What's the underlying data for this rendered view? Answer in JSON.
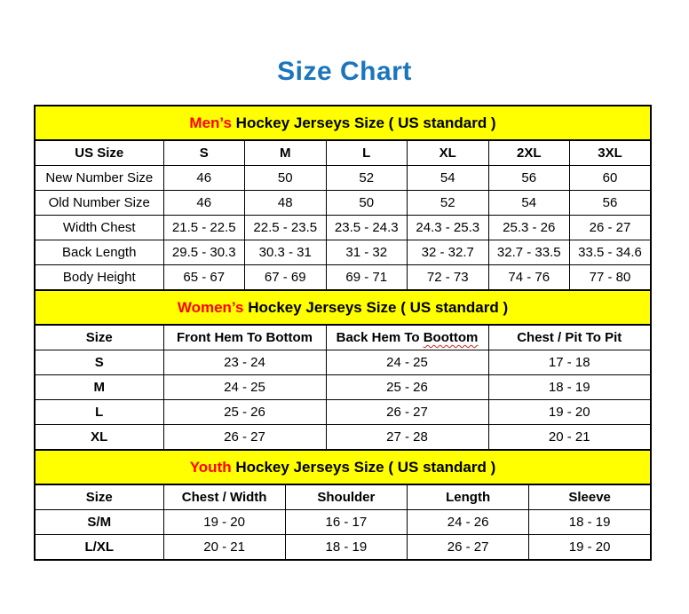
{
  "title": "Size Chart",
  "colors": {
    "title_blue": "#1B75BC",
    "section_yellow": "#FFFF00",
    "highlight_red": "#FF0000",
    "squiggle_red": "#C8281E",
    "text_black": "#000000",
    "background": "#FFFFFF"
  },
  "sections": [
    {
      "id": "mens",
      "header": {
        "highlight": "Men’s",
        "rest": " Hockey Jerseys Size ( US standard )"
      },
      "columns": [
        "US Size",
        "S",
        "M",
        "L",
        "XL",
        "2XL",
        "3XL"
      ],
      "bold_row_labels": false,
      "first_col_width": 145,
      "rows": [
        {
          "label": "New Number Size",
          "values": [
            "46",
            "50",
            "52",
            "54",
            "56",
            "60"
          ]
        },
        {
          "label": "Old Number Size",
          "values": [
            "46",
            "48",
            "50",
            "52",
            "54",
            "56"
          ]
        },
        {
          "label": "Width Chest",
          "values": [
            "21.5 - 22.5",
            "22.5 - 23.5",
            "23.5 - 24.3",
            "24.3 - 25.3",
            "25.3 - 26",
            "26 - 27"
          ]
        },
        {
          "label": "Back Length",
          "values": [
            "29.5 - 30.3",
            "30.3 - 31",
            "31 - 32",
            "32 - 32.7",
            "32.7 - 33.5",
            "33.5 - 34.6"
          ]
        },
        {
          "label": "Body Height",
          "values": [
            "65 - 67",
            "67 - 69",
            "69 - 71",
            "72 - 73",
            "74 - 76",
            "77 - 80"
          ]
        }
      ]
    },
    {
      "id": "womens",
      "header": {
        "highlight": "Women’s",
        "rest": " Hockey Jerseys Size ( US standard )"
      },
      "columns": [
        "Size",
        "Front Hem To Bottom",
        "Back Hem To Boottom",
        "Chest / Pit To Pit"
      ],
      "spellcheck": {
        "index": 2,
        "before": "Back Hem To ",
        "word": "Boottom"
      },
      "bold_row_labels": true,
      "first_col_width": 145,
      "rows": [
        {
          "label": "S",
          "values": [
            "23 - 24",
            "24 - 25",
            "17 - 18"
          ]
        },
        {
          "label": "M",
          "values": [
            "24 - 25",
            "25 - 26",
            "18 - 19"
          ]
        },
        {
          "label": "L",
          "values": [
            "25 - 26",
            "26 - 27",
            "19 - 20"
          ]
        },
        {
          "label": "XL",
          "values": [
            "26 - 27",
            "27 - 28",
            "20 - 21"
          ]
        }
      ]
    },
    {
      "id": "youth",
      "header": {
        "highlight": "Youth",
        "rest": " Hockey Jerseys Size ( US standard )"
      },
      "columns": [
        "Size",
        "Chest / Width",
        "Shoulder",
        "Length",
        "Sleeve"
      ],
      "bold_row_labels": true,
      "first_col_width": 145,
      "rows": [
        {
          "label": "S/M",
          "values": [
            "19 - 20",
            "16 - 17",
            "24 - 26",
            "18 - 19"
          ]
        },
        {
          "label": "L/XL",
          "values": [
            "20 - 21",
            "18 - 19",
            "26 - 27",
            "19 - 20"
          ]
        }
      ]
    }
  ]
}
